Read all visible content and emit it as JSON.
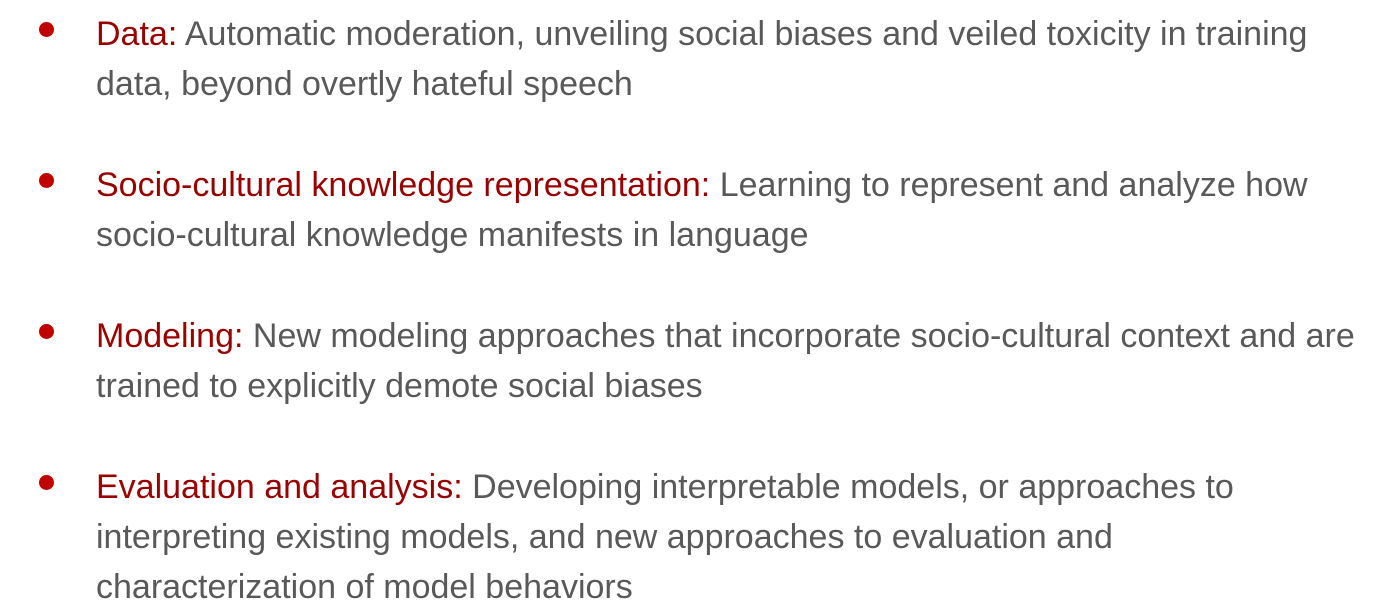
{
  "items": [
    {
      "term": "Data",
      "separator": ":",
      "description": " Automatic moderation, unveiling social biases and veiled toxicity in training data, beyond overtly hateful speech"
    },
    {
      "term": "Socio-cultural knowledge representation",
      "separator": ":",
      "description": " Learning to represent and analyze how socio-cultural knowledge manifests in language"
    },
    {
      "term": "Modeling",
      "separator": ":",
      "description": " New modeling approaches that incorporate socio-cultural context and are trained to explicitly demote social biases"
    },
    {
      "term": "Evaluation and analysis",
      "separator": ":",
      "description": " Developing interpretable models, or approaches to interpreting existing models, and new approaches to evaluation and characterization of model behaviors"
    }
  ],
  "colors": {
    "bullet": "#c00000",
    "term": "#990000",
    "text": "#595959"
  }
}
